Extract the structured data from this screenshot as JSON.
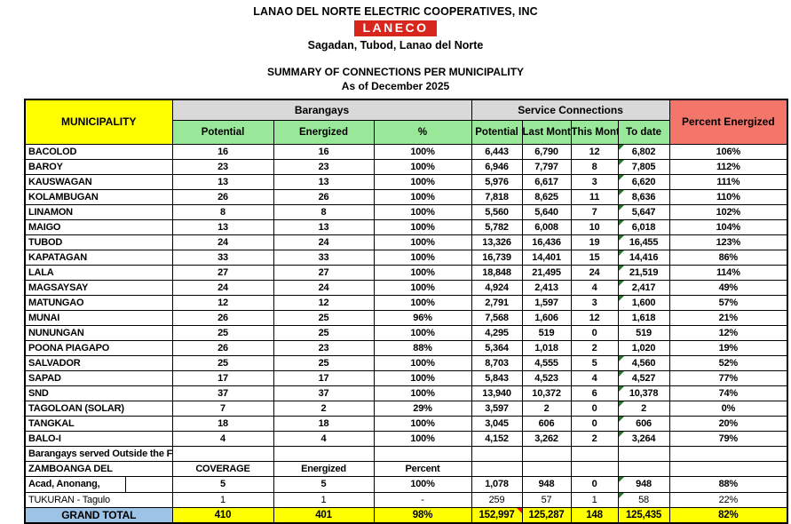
{
  "header": {
    "company": "LANAO DEL NORTE ELECTRIC COOPERATIVES, INC",
    "logo_text": "LANECO",
    "address": "Sagadan, Tubod, Lanao del Norte",
    "report_title": "SUMMARY OF CONNECTIONS PER MUNICIPALITY",
    "as_of": "As of December 2025"
  },
  "colors": {
    "logo_red": "#D9261C",
    "municipality_header_yellow": "#FFFF00",
    "subheader_green": "#99E899",
    "group_header_gray": "#D9D9D9",
    "percent_energized_salmon": "#F4766B",
    "grand_total_blue": "#9DC3E6",
    "error_flag_green": "#1E7A1E",
    "comment_flag_red": "#FF0000"
  },
  "table": {
    "head": {
      "municipality": "MUNICIPALITY",
      "group_barangays": "Barangays",
      "group_service": "Service Connections",
      "sub": [
        "Potential",
        "Energized",
        "%",
        "Potential",
        "Last Month",
        "This Month",
        "To date"
      ],
      "percent_energized": "Percent Energized"
    },
    "rows": [
      {
        "municipality": "BACOLOD",
        "style": "normal",
        "green_flag": true,
        "split": false,
        "values": [
          "16",
          "16",
          "100%",
          "6,443",
          "6,790",
          "12",
          "6,802",
          "106%"
        ]
      },
      {
        "municipality": "BAROY",
        "style": "normal",
        "green_flag": true,
        "split": false,
        "values": [
          "23",
          "23",
          "100%",
          "6,946",
          "7,797",
          "8",
          "7,805",
          "112%"
        ]
      },
      {
        "municipality": "KAUSWAGAN",
        "style": "normal",
        "green_flag": true,
        "split": false,
        "values": [
          "13",
          "13",
          "100%",
          "5,976",
          "6,617",
          "3",
          "6,620",
          "111%"
        ]
      },
      {
        "municipality": "KOLAMBUGAN",
        "style": "normal",
        "green_flag": true,
        "split": false,
        "values": [
          "26",
          "26",
          "100%",
          "7,818",
          "8,625",
          "11",
          "8,636",
          "110%"
        ]
      },
      {
        "municipality": "LINAMON",
        "style": "normal",
        "green_flag": true,
        "split": false,
        "values": [
          "8",
          "8",
          "100%",
          "5,560",
          "5,640",
          "7",
          "5,647",
          "102%"
        ]
      },
      {
        "municipality": "MAIGO",
        "style": "normal",
        "green_flag": true,
        "split": false,
        "values": [
          "13",
          "13",
          "100%",
          "5,782",
          "6,008",
          "10",
          "6,018",
          "104%"
        ]
      },
      {
        "municipality": "TUBOD",
        "style": "normal",
        "green_flag": true,
        "split": false,
        "values": [
          "24",
          "24",
          "100%",
          "13,326",
          "16,436",
          "19",
          "16,455",
          "123%"
        ]
      },
      {
        "municipality": "KAPATAGAN",
        "style": "normal",
        "green_flag": true,
        "split": false,
        "values": [
          "33",
          "33",
          "100%",
          "16,739",
          "14,401",
          "15",
          "14,416",
          "86%"
        ]
      },
      {
        "municipality": "LALA",
        "style": "normal",
        "green_flag": true,
        "split": false,
        "values": [
          "27",
          "27",
          "100%",
          "18,848",
          "21,495",
          "24",
          "21,519",
          "114%"
        ]
      },
      {
        "municipality": "MAGSAYSAY",
        "style": "normal",
        "green_flag": true,
        "split": false,
        "values": [
          "24",
          "24",
          "100%",
          "4,924",
          "2,413",
          "4",
          "2,417",
          "49%"
        ]
      },
      {
        "municipality": "MATUNGAO",
        "style": "normal",
        "green_flag": true,
        "split": false,
        "values": [
          "12",
          "12",
          "100%",
          "2,791",
          "1,597",
          "3",
          "1,600",
          "57%"
        ]
      },
      {
        "municipality": "MUNAI",
        "style": "normal",
        "green_flag": false,
        "split": false,
        "values": [
          "26",
          "25",
          "96%",
          "7,568",
          "1,606",
          "12",
          "1,618",
          "21%"
        ]
      },
      {
        "municipality": "NUNUNGAN",
        "style": "normal",
        "green_flag": false,
        "split": false,
        "values": [
          "25",
          "25",
          "100%",
          "4,295",
          "519",
          "0",
          "519",
          "12%"
        ]
      },
      {
        "municipality": "POONA PIAGAPO",
        "style": "normal",
        "green_flag": false,
        "split": false,
        "values": [
          "26",
          "23",
          "88%",
          "5,364",
          "1,018",
          "2",
          "1,020",
          "19%"
        ]
      },
      {
        "municipality": "SALVADOR",
        "style": "normal",
        "green_flag": true,
        "split": false,
        "values": [
          "25",
          "25",
          "100%",
          "8,703",
          "4,555",
          "5",
          "4,560",
          "52%"
        ]
      },
      {
        "municipality": "SAPAD",
        "style": "normal",
        "green_flag": true,
        "split": false,
        "values": [
          "17",
          "17",
          "100%",
          "5,843",
          "4,523",
          "4",
          "4,527",
          "77%"
        ]
      },
      {
        "municipality": "SND",
        "style": "normal",
        "green_flag": true,
        "split": false,
        "values": [
          "37",
          "37",
          "100%",
          "13,940",
          "10,372",
          "6",
          "10,378",
          "74%"
        ]
      },
      {
        "municipality": "TAGOLOAN (SOLAR)",
        "style": "normal",
        "green_flag": true,
        "split": false,
        "values": [
          "7",
          "2",
          "29%",
          "3,597",
          "2",
          "0",
          "2",
          "0%"
        ]
      },
      {
        "municipality": "TANGKAL",
        "style": "normal",
        "green_flag": true,
        "split": false,
        "values": [
          "18",
          "18",
          "100%",
          "3,045",
          "606",
          "0",
          "606",
          "20%"
        ]
      },
      {
        "municipality": "BALO-I",
        "style": "normal",
        "green_flag": true,
        "split": false,
        "values": [
          "4",
          "4",
          "100%",
          "4,152",
          "3,262",
          "2",
          "3,264",
          "79%"
        ]
      },
      {
        "municipality": "Barangays served Outside the Franc",
        "style": "section",
        "green_flag": false,
        "split": false,
        "values": [
          "",
          "",
          "",
          "",
          "",
          "",
          "",
          ""
        ]
      },
      {
        "municipality": "ZAMBOANGA DEL",
        "style": "subhead",
        "green_flag": false,
        "split": false,
        "values": [
          "COVERAGE",
          "Energized",
          "Percent",
          "",
          "",
          "",
          "",
          ""
        ]
      },
      {
        "municipality": "Acad, Anonang,",
        "style": "normal",
        "green_flag": true,
        "split": true,
        "values": [
          "5",
          "5",
          "100%",
          "1,078",
          "948",
          "0",
          "948",
          "88%"
        ]
      },
      {
        "municipality": "TUKURAN - Tagulo",
        "style": "regular",
        "green_flag": true,
        "split": false,
        "values": [
          "1",
          "1",
          "-",
          "259",
          "57",
          "1",
          "58",
          "22%"
        ]
      }
    ],
    "grand_total": {
      "label": "GRAND TOTAL",
      "values": [
        "410",
        "401",
        "98%",
        "152,997",
        "125,287",
        "148",
        "125,435",
        "82%"
      ],
      "red_flag_col": 3
    }
  }
}
